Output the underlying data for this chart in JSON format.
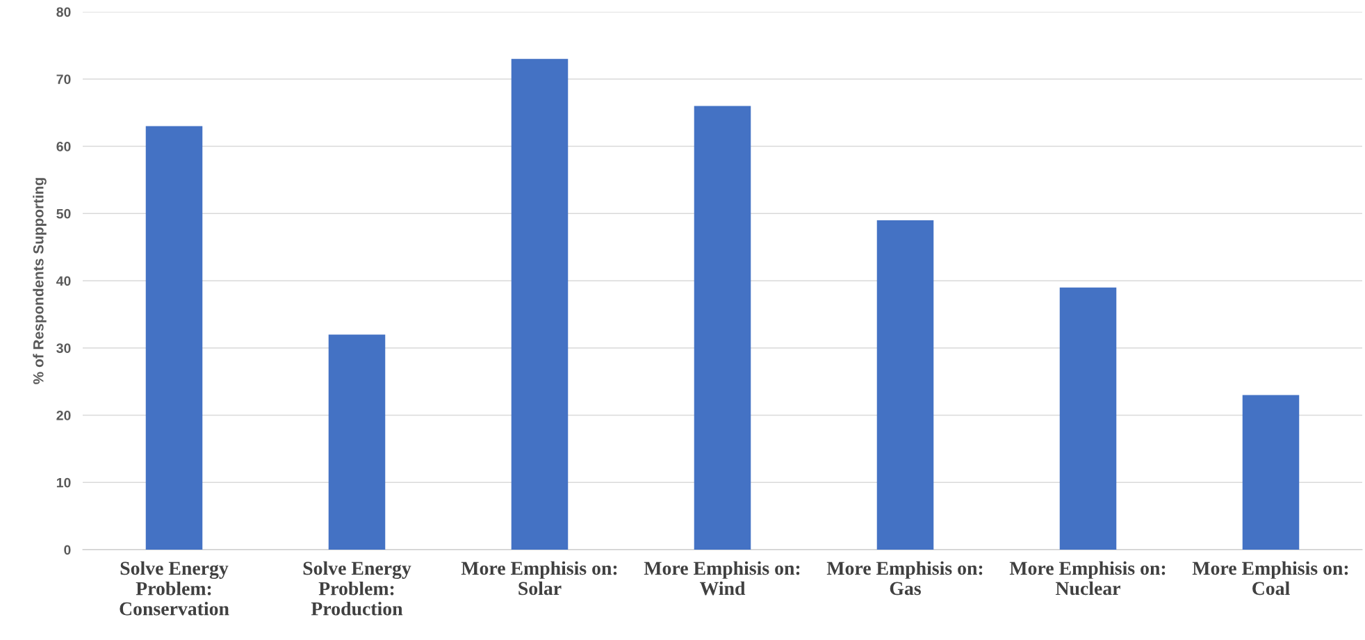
{
  "chart_data": {
    "type": "bar",
    "ylabel": "% of Respondents Supporting",
    "categories": [
      "Solve Energy\nProblem:\nConservation",
      "Solve Energy\nProblem:\nProduction",
      "More Emphisis on:\nSolar",
      "More Emphisis on:\nWind",
      "More Emphisis on:\nGas",
      "More Emphisis on:\nNuclear",
      "More Emphisis on:\nCoal"
    ],
    "values": [
      63,
      32,
      73,
      66,
      49,
      39,
      23
    ],
    "color": "#4472c4",
    "ylim": [
      0,
      80
    ],
    "yticks": [
      0,
      10,
      20,
      30,
      40,
      50,
      60,
      70,
      80
    ],
    "grid": "y",
    "legend": false
  }
}
